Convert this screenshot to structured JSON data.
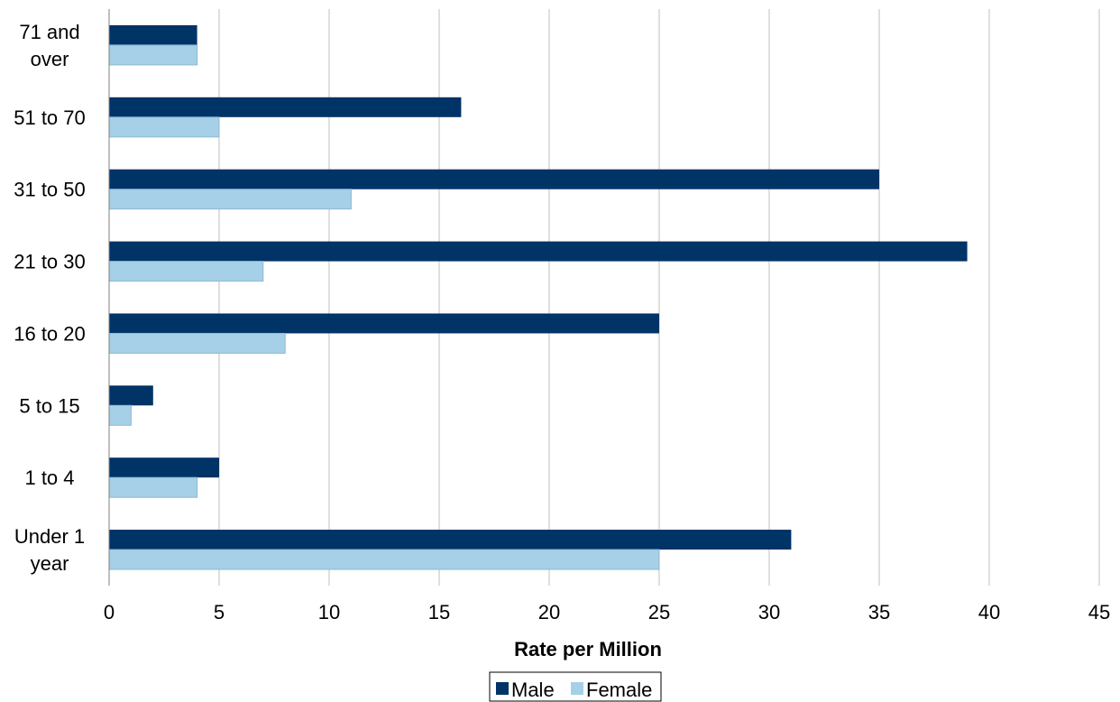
{
  "chart_data": {
    "type": "bar",
    "orientation": "horizontal",
    "categories": [
      [
        "71 and",
        "over"
      ],
      [
        "51 to 70"
      ],
      [
        "31 to 50"
      ],
      [
        "21 to 30"
      ],
      [
        "16 to 20"
      ],
      [
        "5 to 15"
      ],
      [
        "1 to 4"
      ],
      [
        "Under 1",
        "year"
      ]
    ],
    "series": [
      {
        "name": "Male",
        "color": "#003366",
        "values": [
          4,
          16,
          35,
          39,
          25,
          2,
          5,
          31
        ]
      },
      {
        "name": "Female",
        "color": "#a6cfe8",
        "values": [
          4,
          5,
          11,
          7,
          8,
          1,
          4,
          25
        ]
      }
    ],
    "title": "",
    "xlabel": "Rate per Million",
    "ylabel": "",
    "xlim": [
      0,
      45
    ],
    "xticks": [
      0,
      5,
      10,
      15,
      20,
      25,
      30,
      35,
      40,
      45
    ],
    "grid": "vertical",
    "legend": "bottom-center"
  }
}
